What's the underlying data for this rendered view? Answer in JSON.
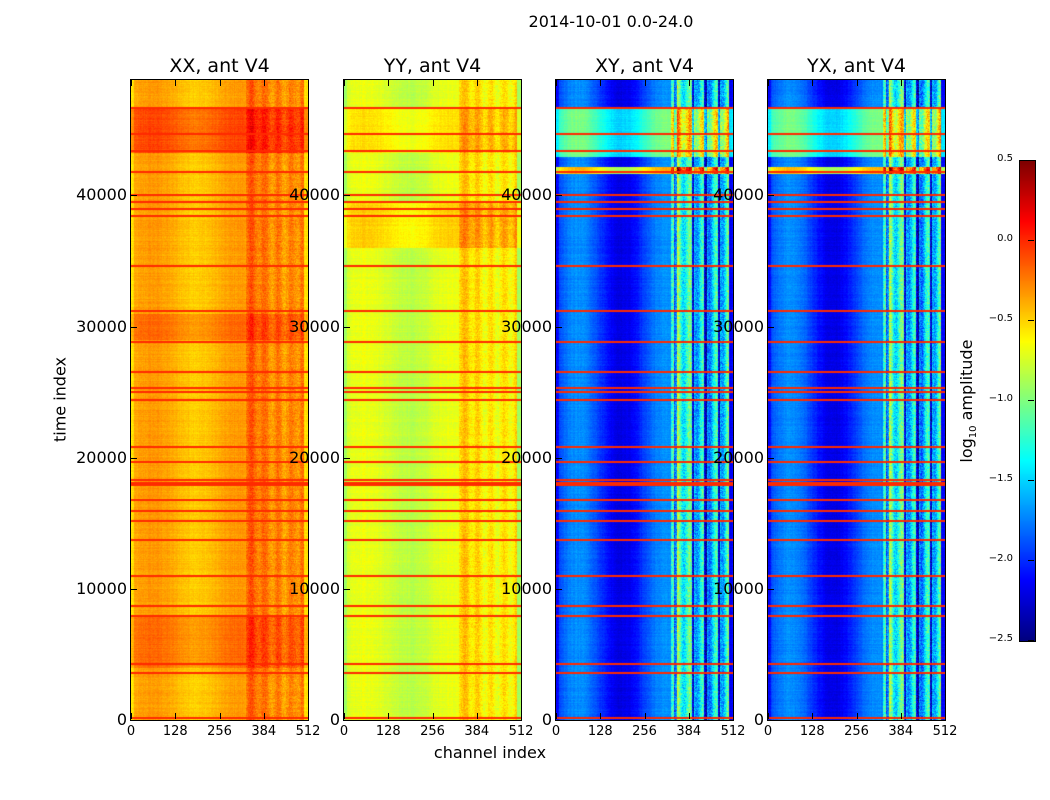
{
  "chart_data": {
    "type": "heatmap",
    "title": "2014-10-01 0.0-24.0",
    "xlabel": "channel index",
    "ylabel": "time index",
    "xlim": [
      0,
      512
    ],
    "ylim": [
      0,
      48800
    ],
    "xticks": [
      "0",
      "128",
      "256",
      "384",
      "512"
    ],
    "yticks": [
      "0",
      "10000",
      "20000",
      "30000",
      "40000"
    ],
    "colorbar": {
      "label_main": "log",
      "label_sub": "10",
      "label_rest": " amplitude",
      "range": [
        -2.5,
        0.5
      ],
      "ticks": [
        "0.5",
        "0.0",
        "−0.5",
        "−1.0",
        "−1.5",
        "−2.0",
        "−2.5"
      ],
      "tick_values": [
        0.5,
        0.0,
        -0.5,
        -1.0,
        -1.5,
        -2.0,
        -2.5
      ],
      "colormap": "jet"
    },
    "flagged_time_rows": [
      150,
      3600,
      4300,
      7900,
      8700,
      11000,
      13700,
      15200,
      15900,
      16800,
      17900,
      18100,
      18300,
      19700,
      20800,
      24400,
      25000,
      25300,
      26500,
      28800,
      31200,
      34600,
      38400,
      39000,
      39500,
      40000,
      41800,
      43400,
      44700,
      46700
    ],
    "panels": [
      {
        "title": "XX, ant V4",
        "base_log10_amplitude": -0.4,
        "rfi_channel_offset": 0.25,
        "time_segments": [
          [
            43300,
            46600,
            0.25
          ],
          [
            4000,
            8000,
            0.15
          ],
          [
            29000,
            31000,
            0.15
          ]
        ]
      },
      {
        "title": "YY, ant V4",
        "base_log10_amplitude": -0.75,
        "rfi_channel_offset": 0.3,
        "time_segments": [
          [
            43300,
            46600,
            0.15
          ],
          [
            36000,
            39500,
            0.2
          ]
        ]
      },
      {
        "title": "XY, ant V4",
        "base_log10_amplitude": -1.95,
        "rfi_channel_offset": 1.0,
        "time_segments": [
          [
            43000,
            46600,
            0.7
          ],
          [
            41700,
            42200,
            1.3
          ]
        ]
      },
      {
        "title": "YX, ant V4",
        "base_log10_amplitude": -1.95,
        "rfi_channel_offset": 1.0,
        "time_segments": [
          [
            43000,
            46600,
            0.7
          ],
          [
            41700,
            42200,
            1.3
          ]
        ]
      }
    ]
  }
}
